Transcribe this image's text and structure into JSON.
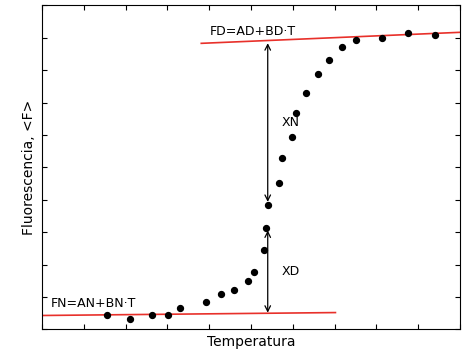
{
  "chart_data": {
    "type": "scatter",
    "x_label": "Temperatura",
    "y_label": "Fluorescencia, <F>",
    "x": [
      15.5,
      21.0,
      26.2,
      30.2,
      32.9,
      39.3,
      42.9,
      46.0,
      49.3,
      50.7,
      53.1,
      53.6,
      54.0,
      56.7,
      57.4,
      59.8,
      60.7,
      63.1,
      66.0,
      68.6,
      71.7,
      75.0,
      81.4,
      87.6,
      94.0
    ],
    "values": [
      4.3,
      3.1,
      4.6,
      4.3,
      6.5,
      8.6,
      10.8,
      12.3,
      14.8,
      17.8,
      24.6,
      31.4,
      38.5,
      45.2,
      52.9,
      59.4,
      66.8,
      72.9,
      78.8,
      83.1,
      87.1,
      89.2,
      89.8,
      91.4,
      90.8
    ],
    "color": "#000000",
    "marker": "o",
    "xlim": [
      0,
      100
    ],
    "ylim": [
      0,
      100
    ],
    "xticks": [
      0,
      10,
      20,
      30,
      40,
      50,
      60,
      70,
      80,
      90,
      100
    ],
    "yticks": [
      0,
      10,
      20,
      30,
      40,
      50,
      60,
      70,
      80,
      90,
      100
    ],
    "tick_labels": false,
    "baselines": [
      {
        "label": "FD=AD+BD·T",
        "x": [
          38.1,
          100
        ],
        "y": [
          88.3,
          91.7
        ],
        "color": "#e8302a"
      },
      {
        "label": "FN=AN+BN·T",
        "x": [
          0,
          70.2
        ],
        "y": [
          4.3,
          5.2
        ],
        "color": "#e8302a"
      }
    ],
    "arrows": [
      {
        "label": "XN",
        "x": 54.0,
        "y_from": 89.2,
        "y_to": 38.5
      },
      {
        "label": "XD",
        "x": 54.0,
        "y_from": 31.4,
        "y_to": 4.3
      }
    ]
  }
}
